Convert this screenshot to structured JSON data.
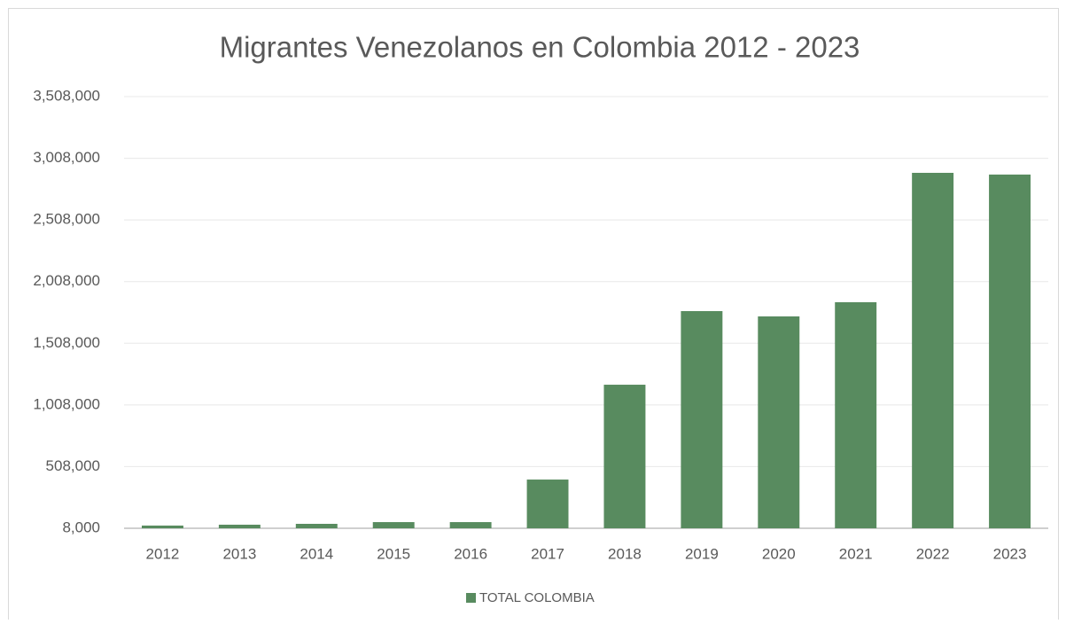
{
  "chart_data": {
    "type": "bar",
    "title": "Migrantes Venezolanos en Colombia 2012 - 2023",
    "categories": [
      "2012",
      "2013",
      "2014",
      "2015",
      "2016",
      "2017",
      "2018",
      "2019",
      "2020",
      "2021",
      "2022",
      "2023"
    ],
    "series": [
      {
        "name": "TOTAL COLOMBIA",
        "color": "#588b5f",
        "values": [
          30000,
          37000,
          44000,
          58000,
          58000,
          403000,
          1172000,
          1769000,
          1726000,
          1841000,
          2890000,
          2876000
        ]
      }
    ],
    "ylim": [
      8000,
      3508000
    ],
    "yticks": [
      {
        "value": 8000,
        "label": "8,000"
      },
      {
        "value": 508000,
        "label": "508,000"
      },
      {
        "value": 1008000,
        "label": "1,008,000"
      },
      {
        "value": 1508000,
        "label": "1,508,000"
      },
      {
        "value": 2008000,
        "label": "2,008,000"
      },
      {
        "value": 2508000,
        "label": "2,508,000"
      },
      {
        "value": 3008000,
        "label": "3,008,000"
      },
      {
        "value": 3508000,
        "label": "3,508,000"
      }
    ],
    "grid": true,
    "legend": "bottom"
  }
}
